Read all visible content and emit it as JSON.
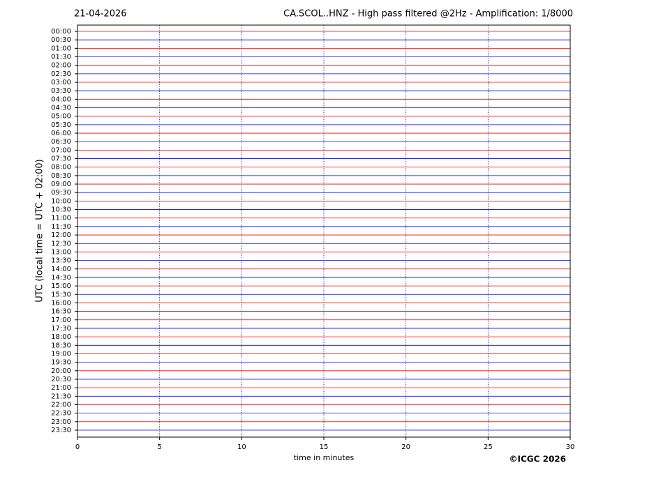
{
  "chart_data": {
    "type": "helicorder",
    "title": "CA.SCOL..HNZ - High pass filtered @2Hz - Amplification: 1/8000",
    "date": "21-04-2026",
    "ylabel": "UTC (local time = UTC + 02:00)",
    "xlabel": "time in minutes",
    "copyright": "©ICGC 2026",
    "xlim": [
      0,
      30
    ],
    "xticks": [
      0,
      5,
      10,
      15,
      20,
      25,
      30
    ],
    "trace_colors": [
      "#ff0000",
      "#0000ff"
    ],
    "categories": [
      "00:00",
      "00:30",
      "01:00",
      "01:30",
      "02:00",
      "02:30",
      "03:00",
      "03:30",
      "04:00",
      "04:30",
      "05:00",
      "05:30",
      "06:00",
      "06:30",
      "07:00",
      "07:30",
      "08:00",
      "08:30",
      "09:00",
      "09:30",
      "10:00",
      "10:30",
      "11:00",
      "11:30",
      "12:00",
      "12:30",
      "13:00",
      "13:30",
      "14:00",
      "14:30",
      "15:00",
      "15:30",
      "16:00",
      "16:30",
      "17:00",
      "17:30",
      "18:00",
      "18:30",
      "19:00",
      "19:30",
      "20:00",
      "20:30",
      "21:00",
      "21:30",
      "22:00",
      "22:30",
      "23:00",
      "23:30"
    ],
    "grid": true
  }
}
